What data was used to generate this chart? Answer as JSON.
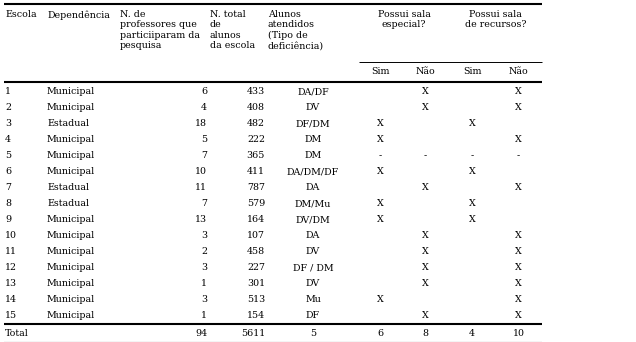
{
  "rows": [
    [
      "1",
      "Municipal",
      "6",
      "433",
      "DA/DF",
      "",
      "X",
      "",
      "X"
    ],
    [
      "2",
      "Municipal",
      "4",
      "408",
      "DV",
      "",
      "X",
      "",
      "X"
    ],
    [
      "3",
      "Estadual",
      "18",
      "482",
      "DF/DM",
      "X",
      "",
      "X",
      ""
    ],
    [
      "4",
      "Municipal",
      "5",
      "222",
      "DM",
      "X",
      "",
      "",
      "X"
    ],
    [
      "5",
      "Municipal",
      "7",
      "365",
      "DM",
      "-",
      "-",
      "-",
      "-"
    ],
    [
      "6",
      "Municipal",
      "10",
      "411",
      "DA/DM/DF",
      "X",
      "",
      "X",
      ""
    ],
    [
      "7",
      "Estadual",
      "11",
      "787",
      "DA",
      "",
      "X",
      "",
      "X"
    ],
    [
      "8",
      "Estadual",
      "7",
      "579",
      "DM/Mu",
      "X",
      "",
      "X",
      ""
    ],
    [
      "9",
      "Municipal",
      "13",
      "164",
      "DV/DM",
      "X",
      "",
      "X",
      ""
    ],
    [
      "10",
      "Municipal",
      "3",
      "107",
      "DA",
      "",
      "X",
      "",
      "X"
    ],
    [
      "11",
      "Municipal",
      "2",
      "458",
      "DV",
      "",
      "X",
      "",
      "X"
    ],
    [
      "12",
      "Municipal",
      "3",
      "227",
      "DF / DM",
      "",
      "X",
      "",
      "X"
    ],
    [
      "13",
      "Municipal",
      "1",
      "301",
      "DV",
      "",
      "X",
      "",
      "X"
    ],
    [
      "14",
      "Municipal",
      "3",
      "513",
      "Mu",
      "X",
      "",
      "",
      "X"
    ],
    [
      "15",
      "Municipal",
      "1",
      "154",
      "DF",
      "",
      "X",
      "",
      "X"
    ]
  ],
  "total_row": [
    "Total",
    "",
    "94",
    "5611",
    "5",
    "6",
    "8",
    "4",
    "10"
  ],
  "background_color": "#ffffff",
  "text_color": "#000000",
  "font_size": 6.8
}
